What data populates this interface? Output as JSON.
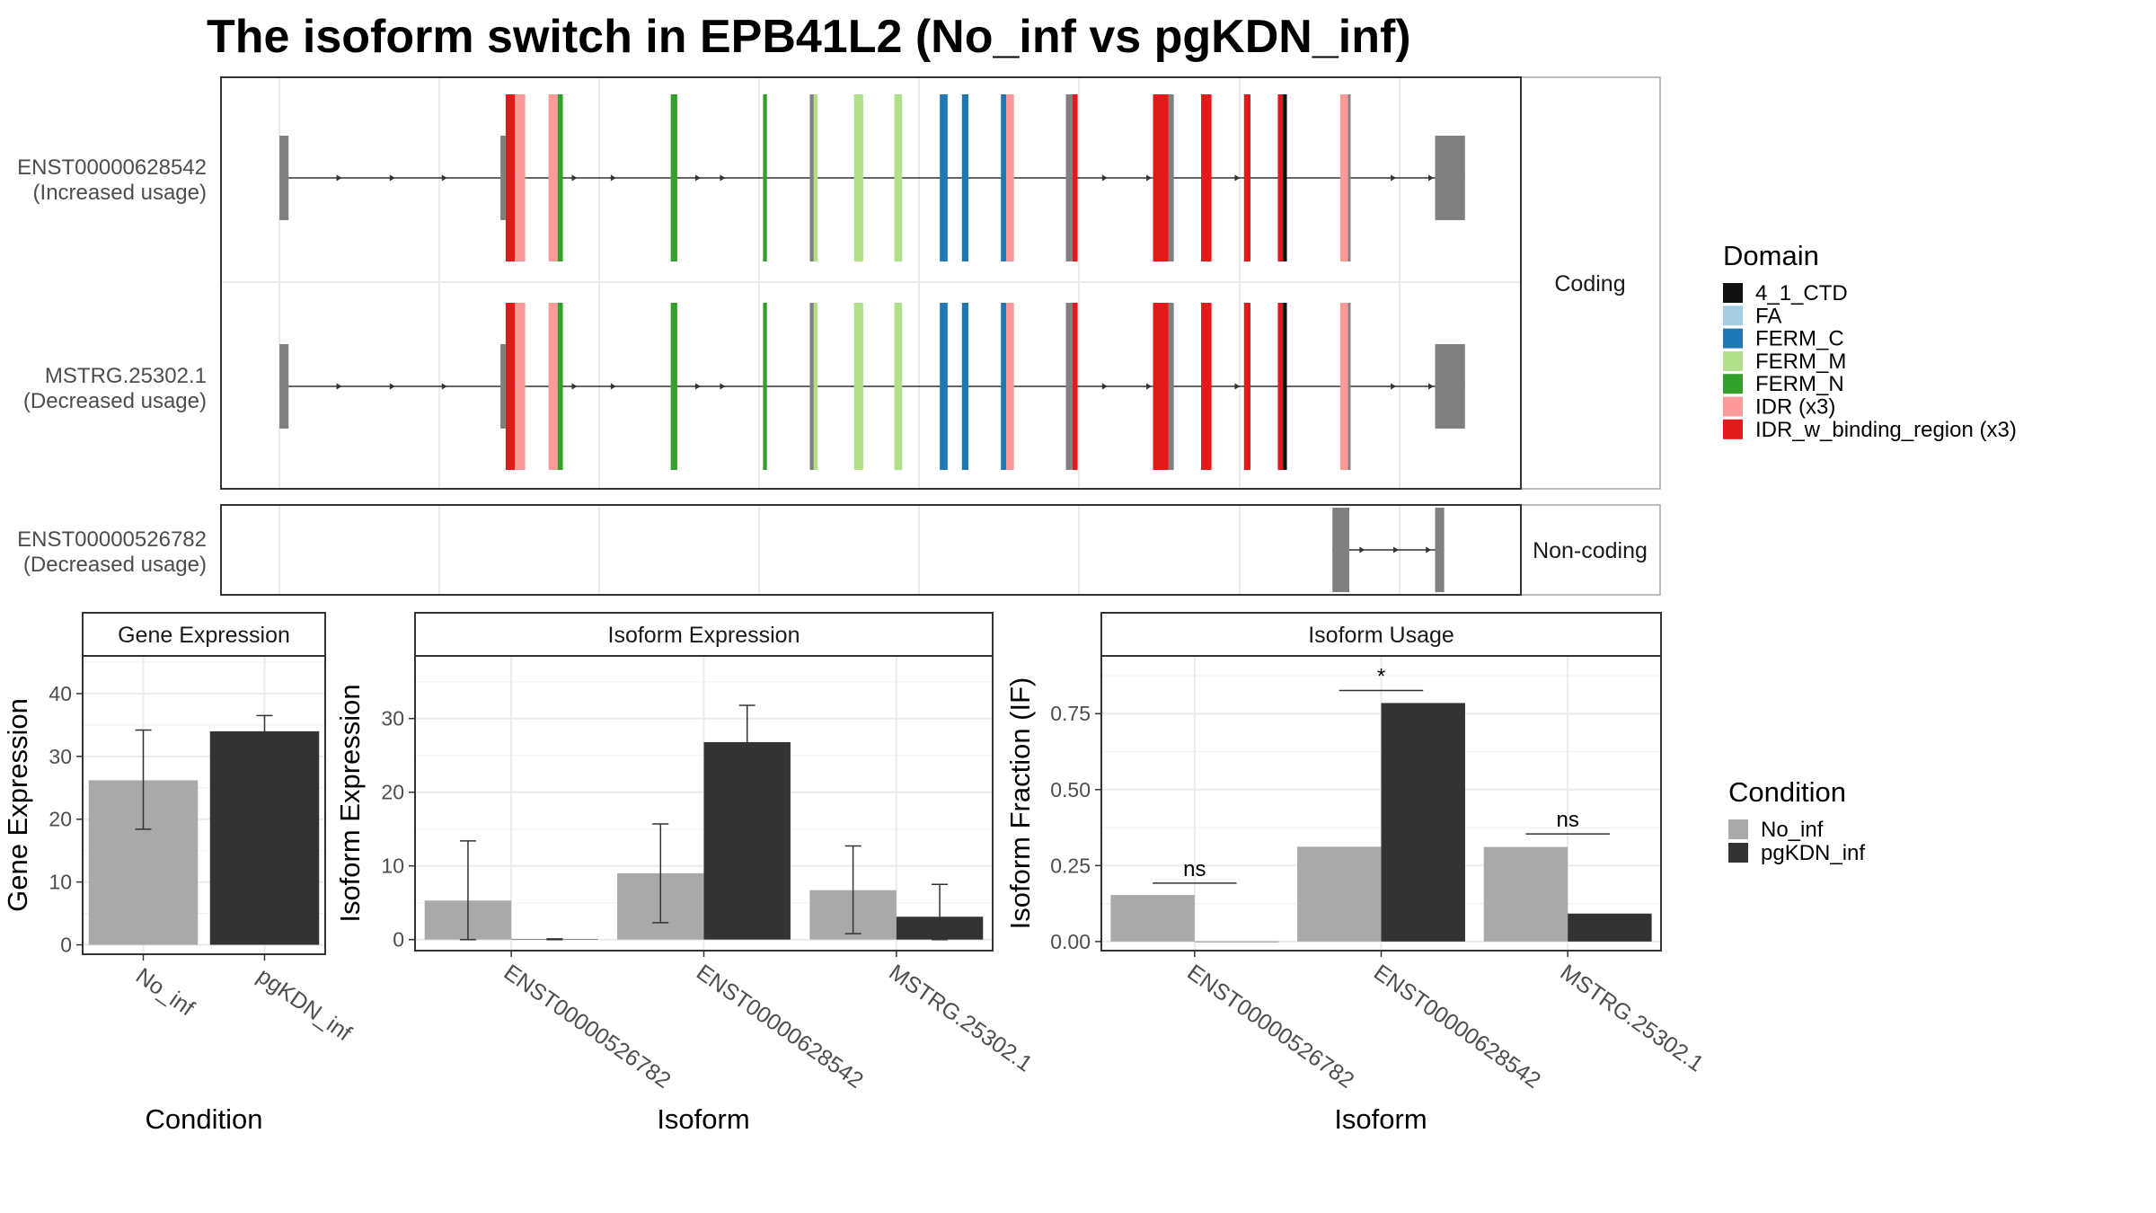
{
  "title": "The isoform switch in EPB41L2 (No_inf vs pgKDN_inf)",
  "structure": {
    "strips": {
      "coding": "Coding",
      "noncoding": "Non-coding"
    },
    "domain_legend": {
      "title": "Domain",
      "items": [
        {
          "label": "4_1_CTD",
          "color": "#111111"
        },
        {
          "label": "FA",
          "color": "#a6cee3"
        },
        {
          "label": "FERM_C",
          "color": "#1f78b4"
        },
        {
          "label": "FERM_M",
          "color": "#b2df8a"
        },
        {
          "label": "FERM_N",
          "color": "#33a02c"
        },
        {
          "label": "IDR (x3)",
          "color": "#fb9a99"
        },
        {
          "label": "IDR_w_binding_region (x3)",
          "color": "#e31a1c"
        }
      ]
    },
    "transcripts": [
      {
        "id": "ENST00000628542",
        "usage": "(Increased usage)",
        "panel": "coding",
        "exons": [
          {
            "s": 0.045,
            "e": 0.052,
            "c": "#808080",
            "h": "utr"
          },
          {
            "s": 0.215,
            "e": 0.219,
            "c": "#808080",
            "h": "utr"
          },
          {
            "s": 0.219,
            "e": 0.226,
            "c": "#e31a1c",
            "h": "cds"
          },
          {
            "s": 0.226,
            "e": 0.234,
            "c": "#fb9a99",
            "h": "cds"
          },
          {
            "s": 0.252,
            "e": 0.259,
            "c": "#fb9a99",
            "h": "cds"
          },
          {
            "s": 0.259,
            "e": 0.263,
            "c": "#33a02c",
            "h": "cds"
          },
          {
            "s": 0.346,
            "e": 0.351,
            "c": "#33a02c",
            "h": "cds"
          },
          {
            "s": 0.417,
            "e": 0.42,
            "c": "#33a02c",
            "h": "cds"
          },
          {
            "s": 0.453,
            "e": 0.456,
            "c": "#808080",
            "h": "cds"
          },
          {
            "s": 0.456,
            "e": 0.459,
            "c": "#b2df8a",
            "h": "cds"
          },
          {
            "s": 0.487,
            "e": 0.494,
            "c": "#b2df8a",
            "h": "cds"
          },
          {
            "s": 0.518,
            "e": 0.524,
            "c": "#b2df8a",
            "h": "cds"
          },
          {
            "s": 0.553,
            "e": 0.559,
            "c": "#1f78b4",
            "h": "cds"
          },
          {
            "s": 0.57,
            "e": 0.575,
            "c": "#1f78b4",
            "h": "cds"
          },
          {
            "s": 0.6,
            "e": 0.604,
            "c": "#1f78b4",
            "h": "cds"
          },
          {
            "s": 0.604,
            "e": 0.61,
            "c": "#fb9a99",
            "h": "cds"
          },
          {
            "s": 0.65,
            "e": 0.655,
            "c": "#808080",
            "h": "cds"
          },
          {
            "s": 0.655,
            "e": 0.659,
            "c": "#e31a1c",
            "h": "cds"
          },
          {
            "s": 0.717,
            "e": 0.729,
            "c": "#e31a1c",
            "h": "cds"
          },
          {
            "s": 0.729,
            "e": 0.733,
            "c": "#808080",
            "h": "cds"
          },
          {
            "s": 0.754,
            "e": 0.762,
            "c": "#e31a1c",
            "h": "cds"
          },
          {
            "s": 0.787,
            "e": 0.792,
            "c": "#e31a1c",
            "h": "cds"
          },
          {
            "s": 0.813,
            "e": 0.817,
            "c": "#e31a1c",
            "h": "cds"
          },
          {
            "s": 0.817,
            "e": 0.82,
            "c": "#111111",
            "h": "cds"
          },
          {
            "s": 0.861,
            "e": 0.867,
            "c": "#fb9a99",
            "h": "cds"
          },
          {
            "s": 0.867,
            "e": 0.869,
            "c": "#808080",
            "h": "cds"
          },
          {
            "s": 0.934,
            "e": 0.957,
            "c": "#808080",
            "h": "utr"
          }
        ],
        "arrows": [
          0.093,
          0.134,
          0.174,
          0.274,
          0.304,
          0.369,
          0.388,
          0.682,
          0.716,
          0.784,
          0.904,
          0.933
        ]
      },
      {
        "id": "MSTRG.25302.1",
        "usage": "(Decreased usage)",
        "panel": "coding",
        "exons": [
          {
            "s": 0.045,
            "e": 0.052,
            "c": "#808080",
            "h": "utr"
          },
          {
            "s": 0.215,
            "e": 0.219,
            "c": "#808080",
            "h": "utr"
          },
          {
            "s": 0.219,
            "e": 0.226,
            "c": "#e31a1c",
            "h": "cds"
          },
          {
            "s": 0.226,
            "e": 0.234,
            "c": "#fb9a99",
            "h": "cds"
          },
          {
            "s": 0.252,
            "e": 0.259,
            "c": "#fb9a99",
            "h": "cds"
          },
          {
            "s": 0.259,
            "e": 0.263,
            "c": "#33a02c",
            "h": "cds"
          },
          {
            "s": 0.346,
            "e": 0.351,
            "c": "#33a02c",
            "h": "cds"
          },
          {
            "s": 0.417,
            "e": 0.42,
            "c": "#33a02c",
            "h": "cds"
          },
          {
            "s": 0.453,
            "e": 0.456,
            "c": "#808080",
            "h": "cds"
          },
          {
            "s": 0.456,
            "e": 0.459,
            "c": "#b2df8a",
            "h": "cds"
          },
          {
            "s": 0.487,
            "e": 0.494,
            "c": "#b2df8a",
            "h": "cds"
          },
          {
            "s": 0.518,
            "e": 0.524,
            "c": "#b2df8a",
            "h": "cds"
          },
          {
            "s": 0.553,
            "e": 0.559,
            "c": "#1f78b4",
            "h": "cds"
          },
          {
            "s": 0.57,
            "e": 0.575,
            "c": "#1f78b4",
            "h": "cds"
          },
          {
            "s": 0.6,
            "e": 0.604,
            "c": "#1f78b4",
            "h": "cds"
          },
          {
            "s": 0.604,
            "e": 0.61,
            "c": "#fb9a99",
            "h": "cds"
          },
          {
            "s": 0.65,
            "e": 0.655,
            "c": "#808080",
            "h": "cds"
          },
          {
            "s": 0.655,
            "e": 0.659,
            "c": "#e31a1c",
            "h": "cds"
          },
          {
            "s": 0.717,
            "e": 0.729,
            "c": "#e31a1c",
            "h": "cds"
          },
          {
            "s": 0.729,
            "e": 0.733,
            "c": "#808080",
            "h": "cds"
          },
          {
            "s": 0.754,
            "e": 0.762,
            "c": "#e31a1c",
            "h": "cds"
          },
          {
            "s": 0.787,
            "e": 0.792,
            "c": "#e31a1c",
            "h": "cds"
          },
          {
            "s": 0.813,
            "e": 0.817,
            "c": "#e31a1c",
            "h": "cds"
          },
          {
            "s": 0.817,
            "e": 0.82,
            "c": "#111111",
            "h": "cds"
          },
          {
            "s": 0.861,
            "e": 0.867,
            "c": "#fb9a99",
            "h": "cds"
          },
          {
            "s": 0.867,
            "e": 0.869,
            "c": "#808080",
            "h": "cds"
          },
          {
            "s": 0.934,
            "e": 0.957,
            "c": "#808080",
            "h": "utr"
          }
        ],
        "arrows": [
          0.093,
          0.134,
          0.174,
          0.274,
          0.304,
          0.369,
          0.388,
          0.682,
          0.716,
          0.784,
          0.904,
          0.933
        ]
      },
      {
        "id": "ENST00000526782",
        "usage": "(Decreased usage)",
        "panel": "noncoding",
        "exons": [
          {
            "s": 0.855,
            "e": 0.868,
            "c": "#808080",
            "h": "utr"
          },
          {
            "s": 0.934,
            "e": 0.941,
            "c": "#808080",
            "h": "utr"
          }
        ],
        "arrows": [
          0.88,
          0.906,
          0.931
        ]
      }
    ]
  },
  "condition_legend": {
    "title": "Condition",
    "items": [
      {
        "label": "No_inf",
        "color": "#a9a9a9"
      },
      {
        "label": "pgKDN_inf",
        "color": "#333333"
      }
    ]
  },
  "chart_data": [
    {
      "type": "bar",
      "title": "Gene Expression",
      "xlabel": "Condition",
      "ylabel": "Gene Expression",
      "categories": [
        "No_inf",
        "pgKDN_inf"
      ],
      "ylim": [
        -1.5,
        46
      ],
      "yticks": [
        0,
        10,
        20,
        30,
        40
      ],
      "series": [
        {
          "name": "No_inf",
          "values": [
            26.2,
            null
          ],
          "lower": [
            18.4,
            null
          ],
          "upper": [
            34.2,
            null
          ]
        },
        {
          "name": "pgKDN_inf",
          "values": [
            null,
            34.0
          ],
          "lower": [
            null,
            31.6
          ],
          "upper": [
            null,
            36.5
          ]
        }
      ]
    },
    {
      "type": "bar",
      "title": "Isoform Expression",
      "xlabel": "Isoform",
      "ylabel": "Isoform Expression",
      "categories": [
        "ENST00000526782",
        "ENST00000628542",
        "MSTRG.25302.1"
      ],
      "ylim": [
        -1.5,
        38.5
      ],
      "yticks": [
        0,
        10,
        20,
        30
      ],
      "series": [
        {
          "name": "No_inf",
          "values": [
            5.3,
            9.0,
            6.7
          ],
          "lower": [
            0.0,
            2.3,
            0.8
          ],
          "upper": [
            13.4,
            15.7,
            12.7
          ]
        },
        {
          "name": "pgKDN_inf",
          "values": [
            0.05,
            26.8,
            3.1
          ],
          "lower": [
            0.0,
            21.8,
            0.0
          ],
          "upper": [
            0.1,
            31.8,
            7.5
          ]
        }
      ]
    },
    {
      "type": "bar",
      "title": "Isoform Usage",
      "xlabel": "Isoform",
      "ylabel": "Isoform Fraction (IF)",
      "categories": [
        "ENST00000526782",
        "ENST00000628542",
        "MSTRG.25302.1"
      ],
      "ylim": [
        -0.03,
        0.94
      ],
      "yticks": [
        0.0,
        0.25,
        0.5,
        0.75
      ],
      "series": [
        {
          "name": "No_inf",
          "values": [
            0.153,
            0.312,
            0.311
          ]
        },
        {
          "name": "pgKDN_inf",
          "values": [
            0.0,
            0.785,
            0.092
          ]
        }
      ],
      "annotations": [
        {
          "category": "ENST00000526782",
          "label": "ns",
          "y": 0.192
        },
        {
          "category": "ENST00000628542",
          "label": "*",
          "y": 0.826
        },
        {
          "category": "MSTRG.25302.1",
          "label": "ns",
          "y": 0.354
        }
      ]
    }
  ]
}
